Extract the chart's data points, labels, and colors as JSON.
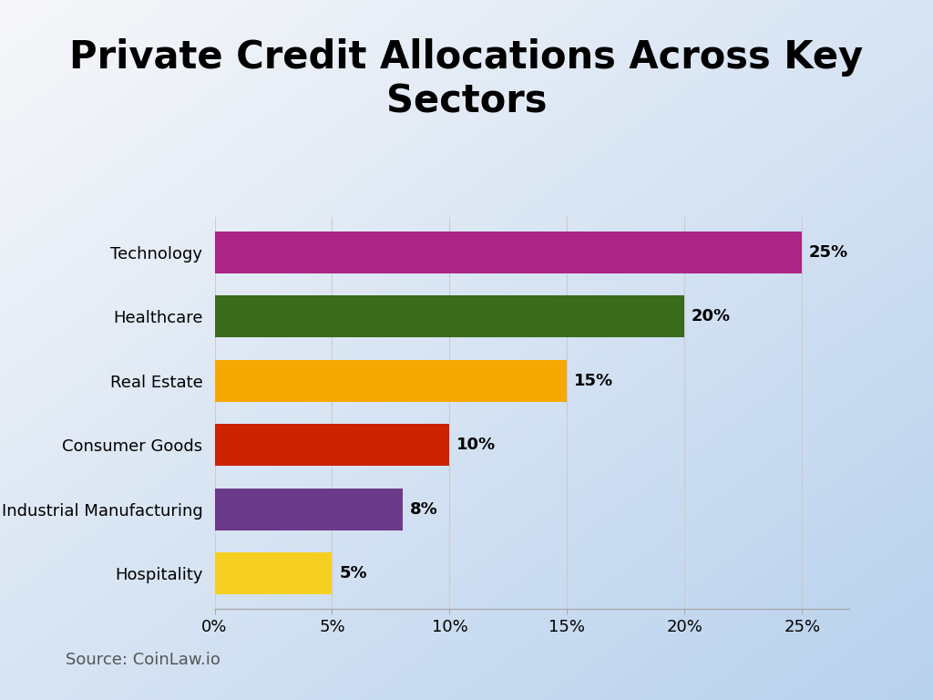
{
  "title_line1": "Private Credit Allocations Across Key",
  "title_line2": "Sectors",
  "categories": [
    "Technology",
    "Healthcare",
    "Real Estate",
    "Consumer Goods",
    "Industrial Manufacturing",
    "Hospitality"
  ],
  "values": [
    25,
    20,
    15,
    10,
    8,
    5
  ],
  "bar_colors": [
    "#AA2585",
    "#3A6B1A",
    "#F5A800",
    "#CC2200",
    "#6B3A8A",
    "#F5D020"
  ],
  "bar_labels": [
    "25%",
    "20%",
    "15%",
    "10%",
    "8%",
    "5%"
  ],
  "xlim": [
    0,
    27
  ],
  "xticks": [
    0,
    5,
    10,
    15,
    20,
    25
  ],
  "xtick_labels": [
    "0%",
    "5%",
    "10%",
    "15%",
    "20%",
    "25%"
  ],
  "source_text": "Source: CoinLaw.io",
  "title_fontsize": 30,
  "label_fontsize": 13,
  "tick_fontsize": 13,
  "source_fontsize": 13,
  "bar_height": 0.65,
  "bg_topleft": [
    0.97,
    0.97,
    0.98
  ],
  "bg_bottomright": [
    0.72,
    0.82,
    0.93
  ]
}
